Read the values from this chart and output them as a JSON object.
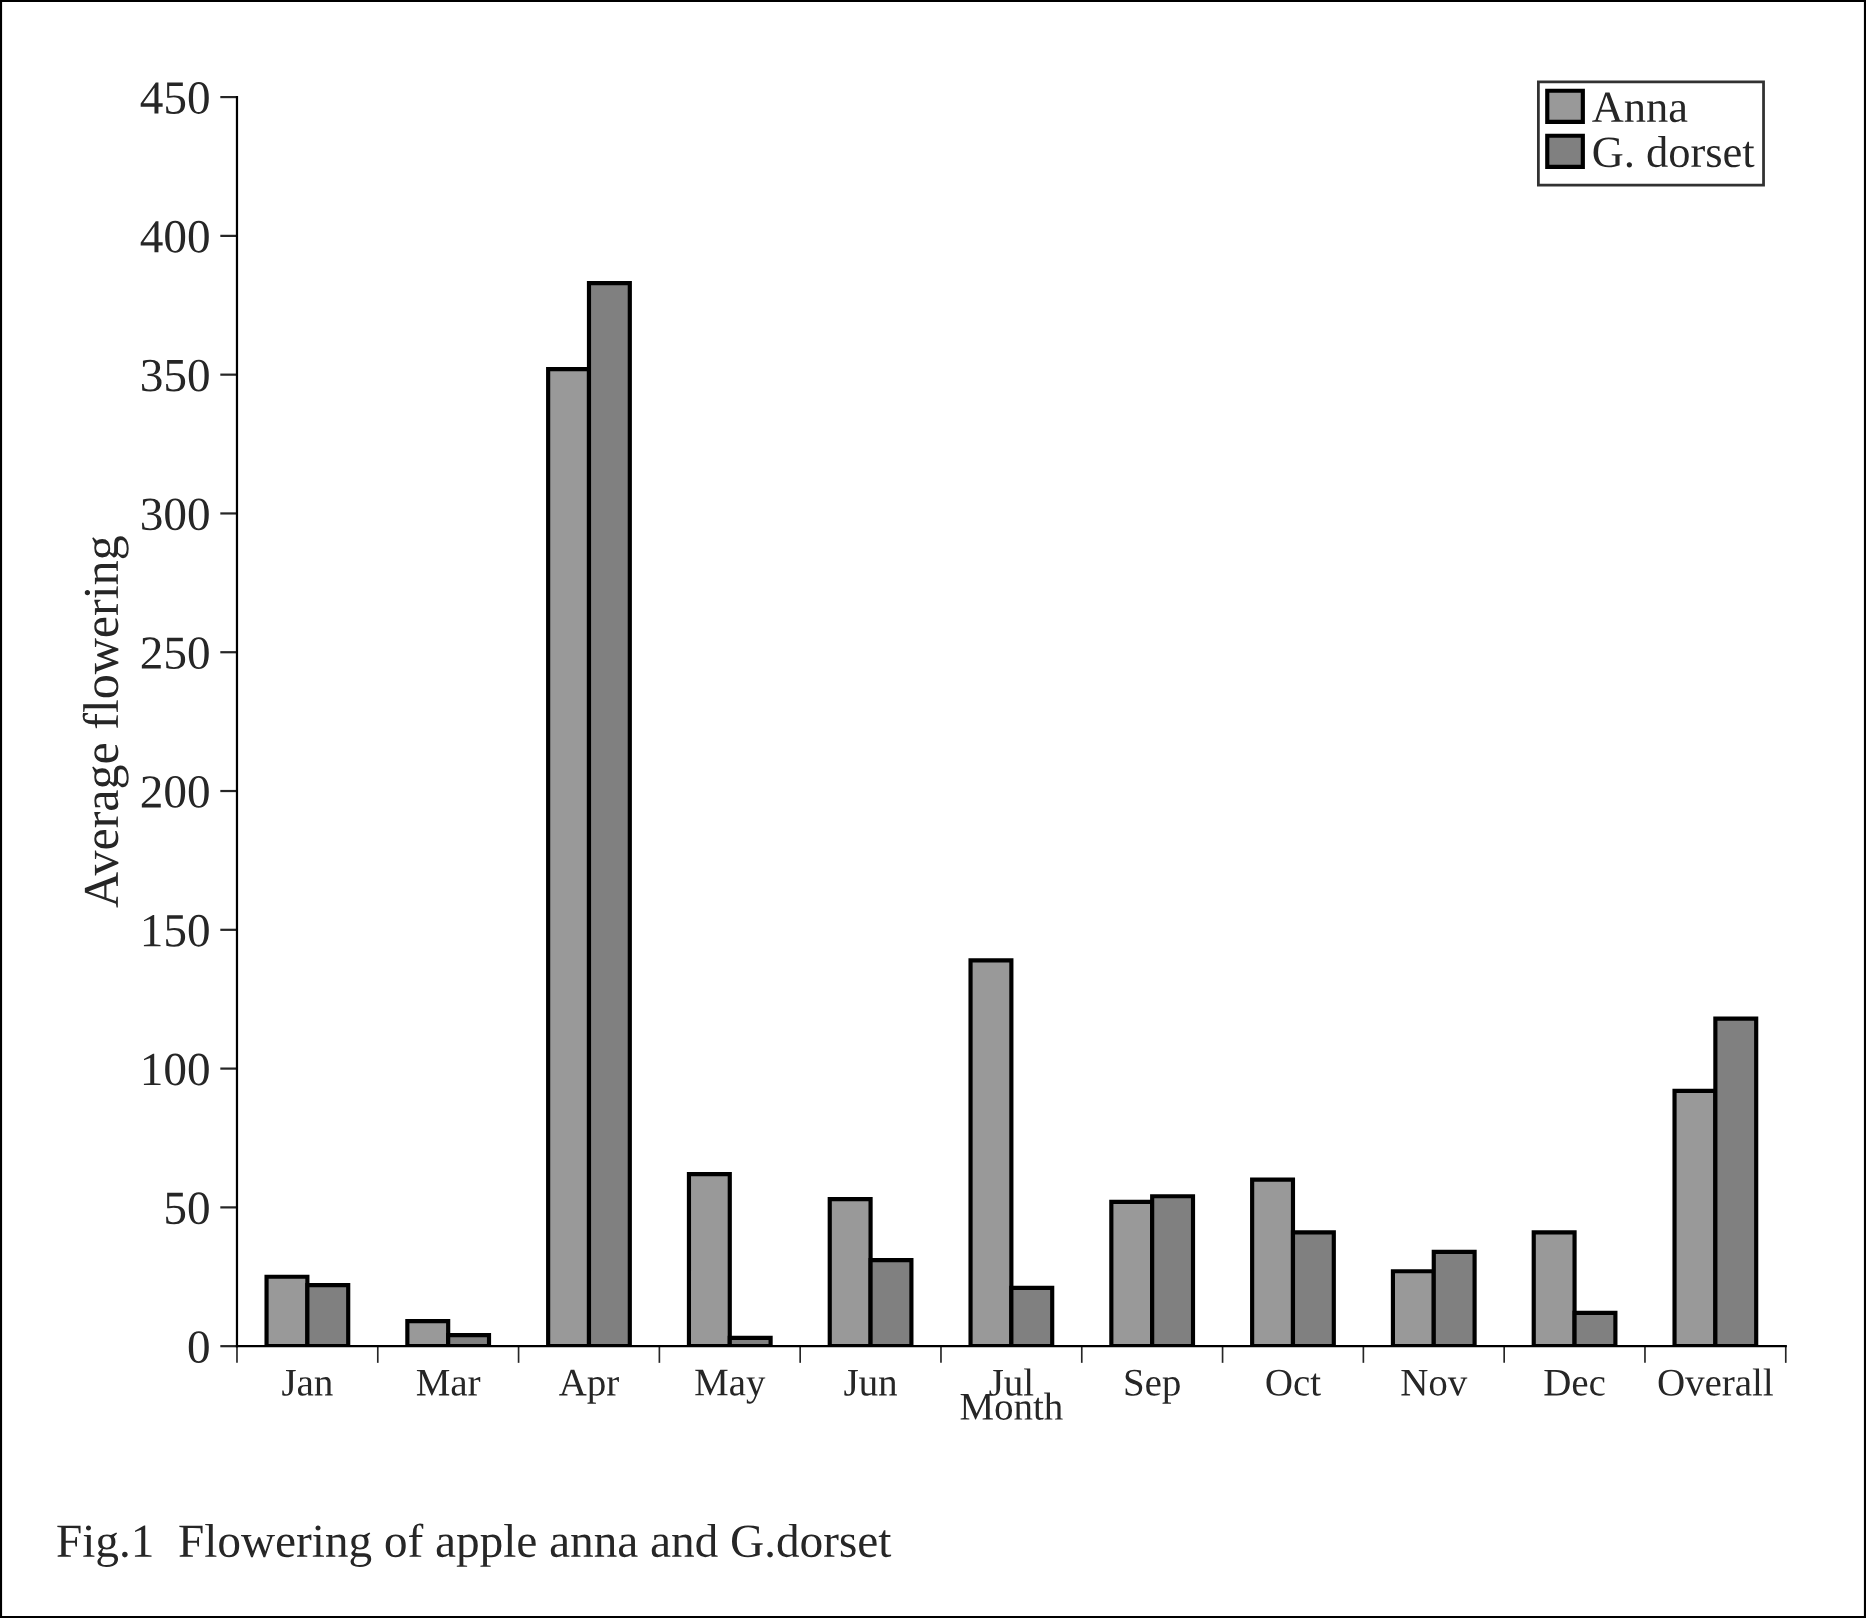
{
  "chart_data": {
    "type": "bar",
    "xlabel": "Month",
    "ylabel": "Average flowering",
    "categories": [
      "Jan",
      "Mar",
      "Apr",
      "May",
      "Jun",
      "Jul",
      "Sep",
      "Oct",
      "Nov",
      "Dec",
      "Overall"
    ],
    "series": [
      {
        "name": "Anna",
        "color": "#999999",
        "values": [
          25,
          9,
          352,
          62,
          53,
          139,
          52,
          60,
          27,
          41,
          92
        ]
      },
      {
        "name": "G. dorset",
        "color": "#808080",
        "values": [
          22,
          4,
          383,
          3,
          31,
          21,
          54,
          41,
          34,
          12,
          118
        ]
      }
    ],
    "ylim": [
      0,
      450
    ],
    "yticks": [
      0,
      50,
      100,
      150,
      200,
      250,
      300,
      350,
      400,
      450
    ],
    "grid": false,
    "legend": "top right",
    "annotations": [
      "Fig.1  Flowering of apple anna and G.dorset"
    ]
  }
}
